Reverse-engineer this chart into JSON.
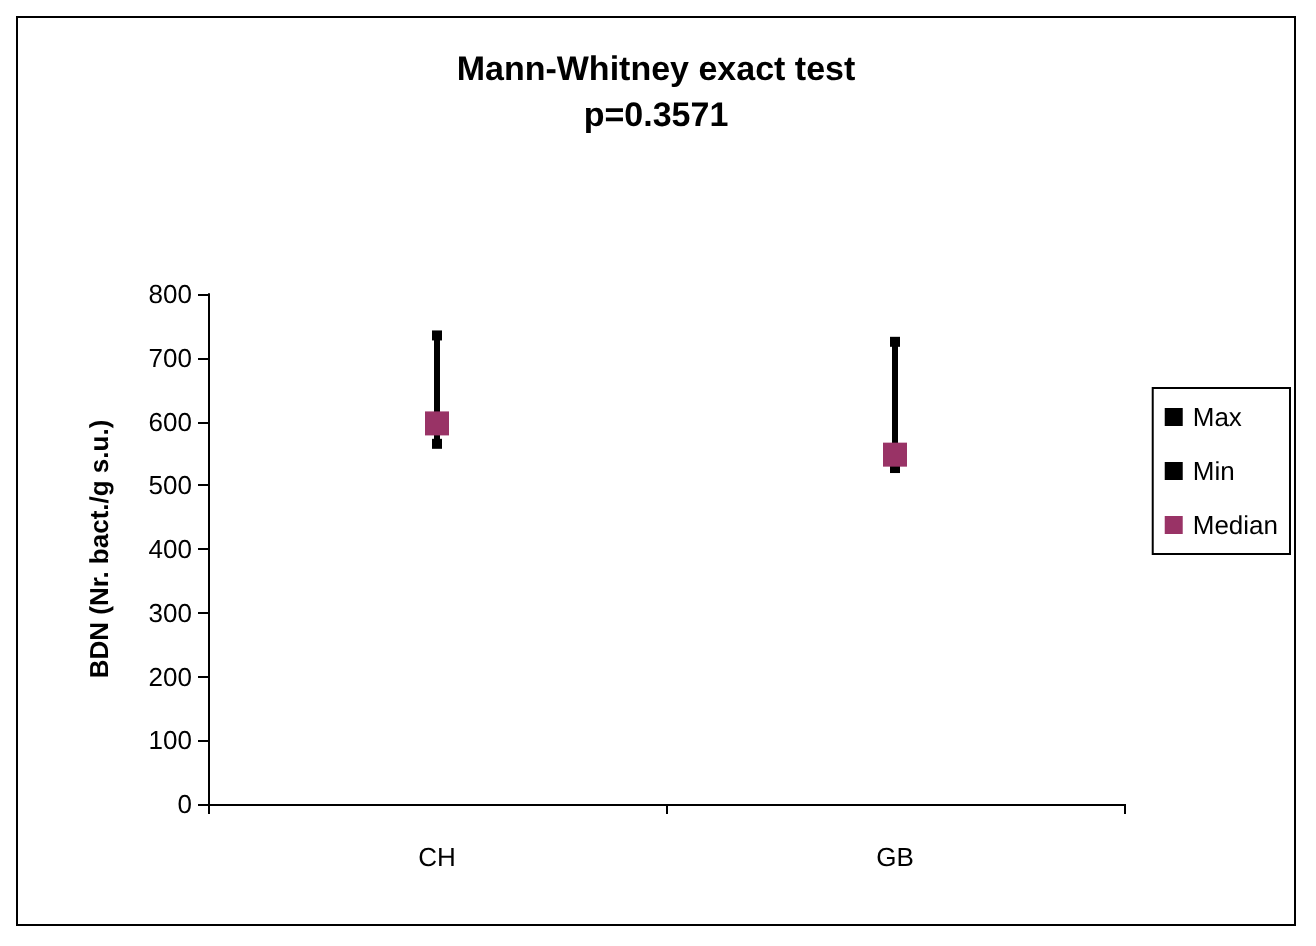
{
  "chart_data": {
    "type": "scatter",
    "title": "Mann-Whitney exact test",
    "subtitle": "p=0.3571",
    "ylabel": "BDN (Nr. bact./g s.u.)",
    "categories": [
      "CH",
      "GB"
    ],
    "ylim": [
      0,
      800
    ],
    "yticks": [
      0,
      100,
      200,
      300,
      400,
      500,
      600,
      700,
      800
    ],
    "grid": false,
    "legend": "right",
    "series": [
      {
        "name": "Max",
        "color": "#000000",
        "marker": "square",
        "values": [
          735,
          725
        ]
      },
      {
        "name": "Min",
        "color": "#000000",
        "marker": "square",
        "values": [
          565,
          527
        ]
      },
      {
        "name": "Median",
        "color": "#993366",
        "marker": "square",
        "values": [
          597,
          548
        ]
      }
    ]
  }
}
